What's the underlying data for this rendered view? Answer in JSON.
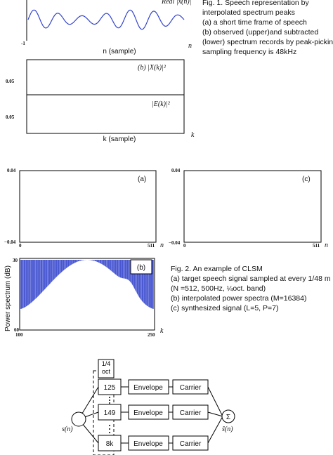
{
  "figure1": {
    "top_label": "Real |x(n)|",
    "y_tick": "-1",
    "x_label": "n (sample)",
    "x_symbol": "n",
    "panel_b_upper": "(b) |X(k)|²",
    "panel_b_lower": "|E(k)|²",
    "y_tick_upper": "0.05",
    "y_tick_lower": "0.05",
    "k_label": "k (sample)",
    "k_symbol": "k",
    "caption": [
      "Fig. 1. Speech representation by",
      "interpolated spectrum peaks",
      "(a) a short time frame of speech",
      "(b) observed (upper)and subtracted",
      "(lower) spectrum records by peak-picking",
      "sampling frequency is 48kHz"
    ]
  },
  "figure2": {
    "panel_a": {
      "label": "(a)",
      "ymax": "0.04",
      "ymin": "−0.04",
      "xmin": "0",
      "xmax": "511",
      "x_symbol": "n"
    },
    "panel_c": {
      "label": "(c)",
      "ymax": "0.04",
      "ymin": "−0.04",
      "xmin": "0",
      "xmax": "511",
      "x_symbol": "n"
    },
    "panel_b": {
      "label": "(b)",
      "y_label": "Power spectrum (dB)",
      "ymax": "30",
      "ymin": "60",
      "xmin": "100",
      "xmax": "250",
      "x_symbol": "k"
    },
    "caption": [
      "Fig. 2. An example of CLSM",
      "(a)  target speech signal sampled at every 1/48 m",
      "(N =512, 500Hz, ¼oct. band)",
      "(b) interpolated power spectra (M=16384)",
      "(c) synthesized signal (L=5, P=7)"
    ]
  },
  "diagram": {
    "band_header": "1/4 oct",
    "bands": [
      "125",
      "149",
      "8k"
    ],
    "envelope": "Envelope",
    "carrier": "Carrier",
    "sum": "Σ",
    "input": "s(n)",
    "output": "ŝ(n)"
  }
}
